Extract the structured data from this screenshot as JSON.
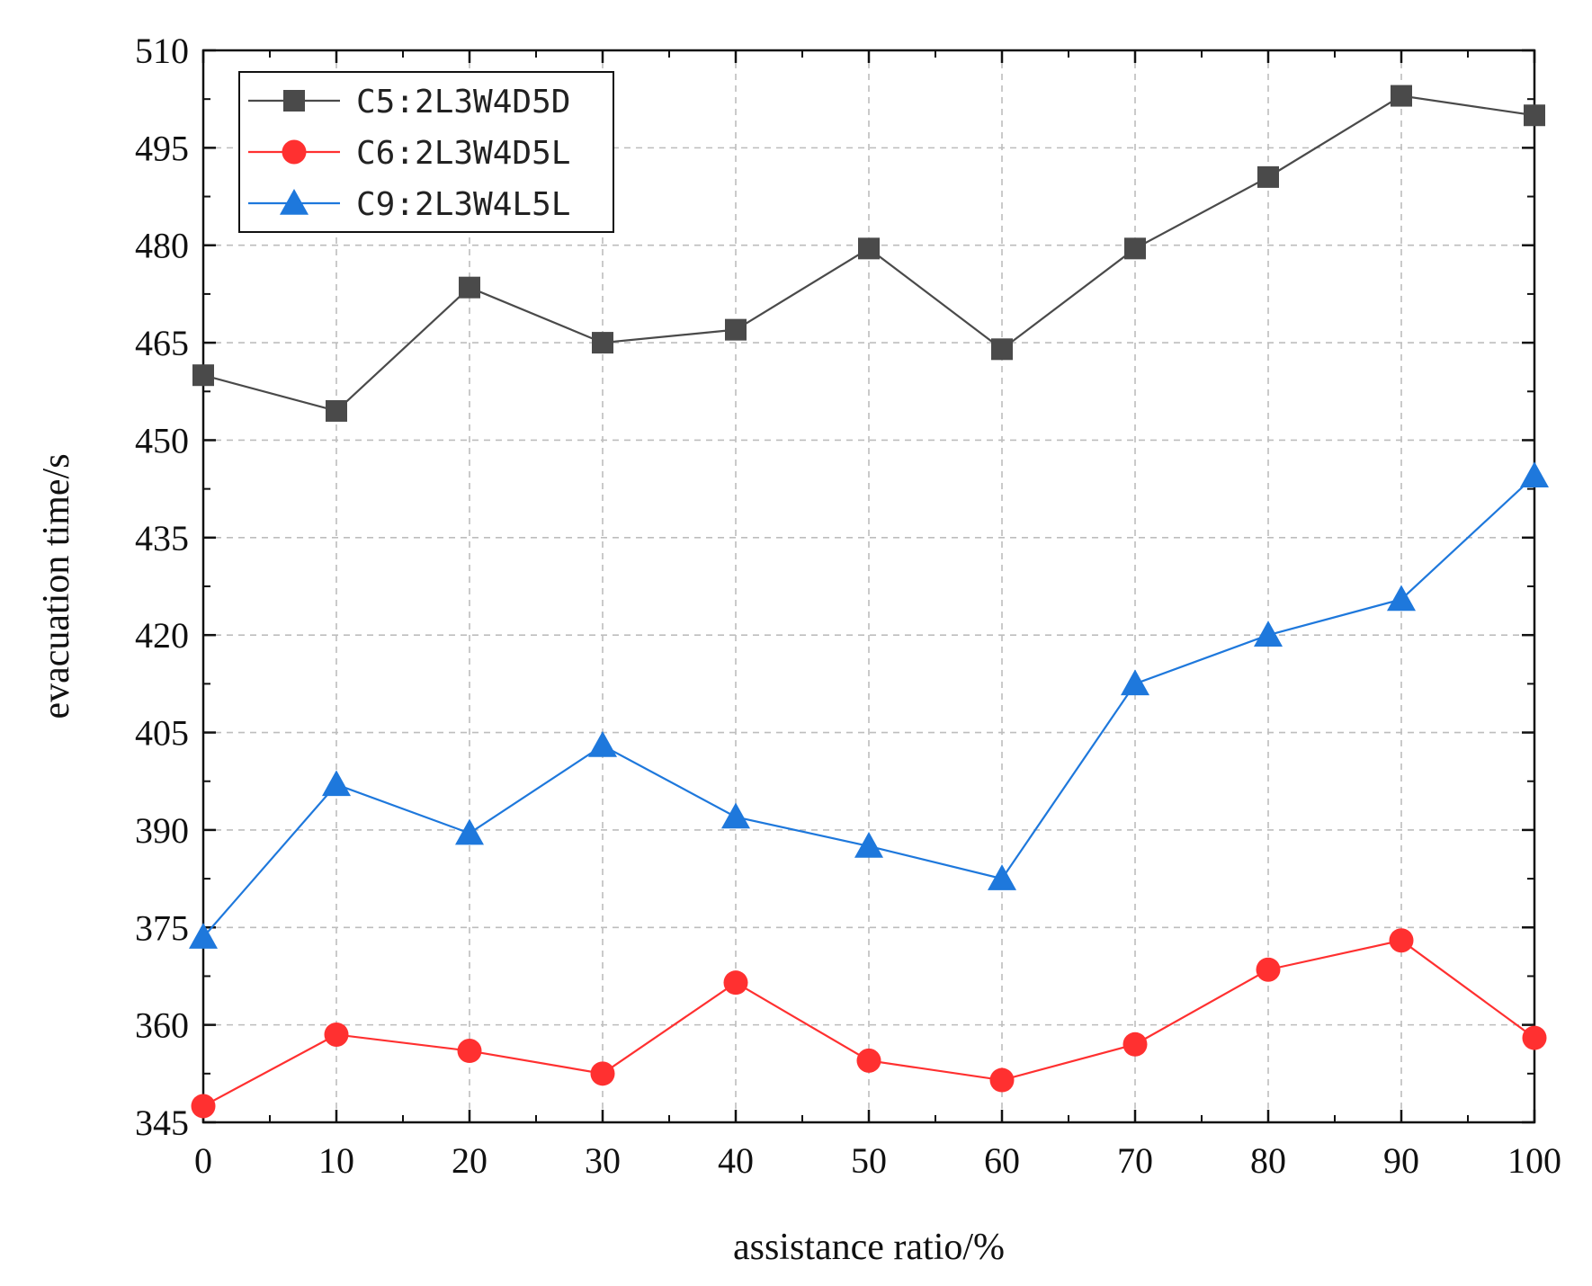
{
  "chart_data": {
    "type": "line",
    "title": "",
    "xlabel": "assistance ratio/%",
    "ylabel": "evacuation time/s",
    "xlim": [
      0,
      100
    ],
    "ylim": [
      345,
      510
    ],
    "x": [
      0,
      10,
      20,
      30,
      40,
      50,
      60,
      70,
      80,
      90,
      100
    ],
    "xticks": [
      0,
      10,
      20,
      30,
      40,
      50,
      60,
      70,
      80,
      90,
      100
    ],
    "yticks": [
      345,
      360,
      375,
      390,
      405,
      420,
      435,
      450,
      465,
      480,
      495,
      510
    ],
    "grid": true,
    "legend_position": "top-left",
    "series": [
      {
        "name": "C5:2L3W4D5D",
        "color": "#4a4a4a",
        "marker": "square",
        "values": [
          460,
          454.5,
          473.5,
          465,
          467,
          479.5,
          464,
          479.5,
          490.5,
          503,
          500
        ]
      },
      {
        "name": "C6:2L3W4D5L",
        "color": "#ff3030",
        "marker": "circle",
        "values": [
          347.5,
          358.5,
          356,
          352.5,
          366.5,
          354.5,
          351.5,
          357,
          368.5,
          373,
          358
        ]
      },
      {
        "name": "C9:2L3W4L5L",
        "color": "#1e78dc",
        "marker": "triangle",
        "values": [
          373.5,
          397,
          389.5,
          403,
          392,
          387.5,
          382.5,
          412.5,
          420,
          425.5,
          444.5
        ]
      }
    ]
  }
}
